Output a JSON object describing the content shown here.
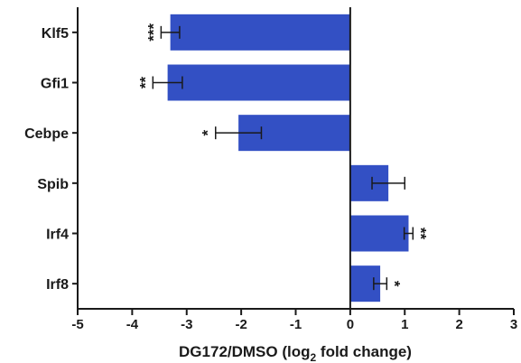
{
  "chart_data": {
    "type": "bar",
    "orientation": "horizontal",
    "categories": [
      "Klf5",
      "Gfi1",
      "Cebpe",
      "Spib",
      "Irf4",
      "Irf8"
    ],
    "values": [
      -3.3,
      -3.35,
      -2.05,
      0.7,
      1.07,
      0.55
    ],
    "errors": [
      0.17,
      0.27,
      0.42,
      0.3,
      0.08,
      0.12
    ],
    "significance": [
      "***",
      "**",
      "*",
      "",
      "**",
      "*"
    ],
    "xlim": [
      -5,
      3
    ],
    "xticks": [
      -5,
      -4,
      -3,
      -2,
      -1,
      0,
      1,
      2,
      3
    ],
    "xlabel": "DG172/DMSO (log",
    "xlabel_subscript": "2",
    "xlabel_suffix": " fold change)",
    "bar_color": "#3350c4",
    "grid": false
  }
}
